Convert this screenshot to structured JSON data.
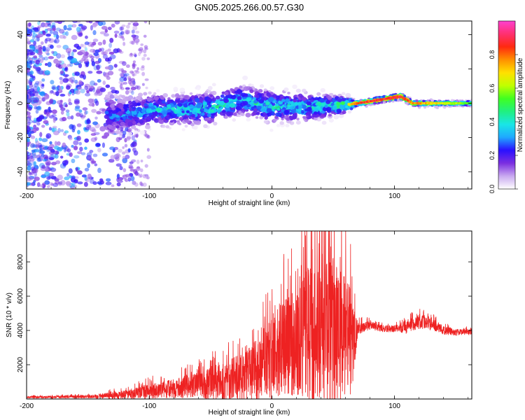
{
  "title": "GN05.2025.266.00.57.G30",
  "chart_data": [
    {
      "type": "heatmap",
      "xlabel": "Height of straight line (km)",
      "ylabel": "Frequency (Hz)",
      "xlim": [
        -200,
        163
      ],
      "ylim": [
        -50,
        48
      ],
      "x_ticks": [
        -200,
        -100,
        0,
        100
      ],
      "y_ticks": [
        -40,
        -20,
        0,
        20,
        40
      ],
      "colorbar": {
        "label": "Normalized spectral amplitude",
        "range": [
          0.0,
          1.0
        ],
        "ticks": [
          "0.0",
          "0.2",
          "0.4",
          "0.6",
          "0.8"
        ],
        "colormap": [
          "#ffffff",
          "#c9a9f0",
          "#7b2fe0",
          "#2a10ff",
          "#1fa8ff",
          "#19e6e6",
          "#20f080",
          "#40ff20",
          "#c0ff00",
          "#ffe000",
          "#ff9000",
          "#ff2a10",
          "#ff3070",
          "#ff40d0"
        ]
      },
      "description_trend": [
        {
          "x": -200,
          "f_center": 0,
          "spread": 48,
          "amp": 0.15
        },
        {
          "x": -130,
          "f_center": -8,
          "spread": 10,
          "amp": 0.3
        },
        {
          "x": -100,
          "f_center": -4,
          "spread": 8,
          "amp": 0.4
        },
        {
          "x": -50,
          "f_center": -3,
          "spread": 8,
          "amp": 0.45
        },
        {
          "x": -25,
          "f_center": 2,
          "spread": 7,
          "amp": 0.45
        },
        {
          "x": 0,
          "f_center": -2,
          "spread": 8,
          "amp": 0.45
        },
        {
          "x": 30,
          "f_center": -2,
          "spread": 7,
          "amp": 0.45
        },
        {
          "x": 60,
          "f_center": -1,
          "spread": 4,
          "amp": 0.6
        },
        {
          "x": 70,
          "f_center": 0,
          "spread": 1.5,
          "amp": 0.9
        },
        {
          "x": 105,
          "f_center": 4,
          "spread": 2,
          "amp": 0.95
        },
        {
          "x": 115,
          "f_center": 0,
          "spread": 1.5,
          "amp": 0.85
        },
        {
          "x": 163,
          "f_center": 0,
          "spread": 1.5,
          "amp": 0.55
        }
      ]
    },
    {
      "type": "line",
      "xlabel": "Height of straight line (km)",
      "ylabel": "SNR (10 * v/v)",
      "xlim": [
        -200,
        163
      ],
      "ylim": [
        0,
        9800
      ],
      "x_ticks": [
        -200,
        -100,
        0,
        100
      ],
      "y_ticks": [
        2000,
        4000,
        6000,
        8000
      ],
      "color": "#ee2222",
      "series": [
        {
          "name": "SNR",
          "x": [
            -200,
            -150,
            -120,
            -100,
            -80,
            -60,
            -40,
            -20,
            -10,
            0,
            10,
            20,
            30,
            40,
            50,
            60,
            65,
            70,
            80,
            90,
            100,
            110,
            120,
            130,
            140,
            150,
            163
          ],
          "mean": [
            100,
            130,
            250,
            450,
            600,
            800,
            1000,
            1400,
            1800,
            2400,
            3000,
            3200,
            3600,
            4200,
            3800,
            3400,
            3200,
            4100,
            4300,
            4100,
            4100,
            4200,
            4500,
            4400,
            4000,
            3900,
            3900
          ],
          "amp": [
            60,
            90,
            250,
            450,
            550,
            750,
            1100,
            1500,
            1900,
            2400,
            2800,
            3000,
            4200,
            4800,
            4500,
            3800,
            3000,
            350,
            250,
            200,
            200,
            400,
            450,
            400,
            250,
            200,
            150
          ]
        }
      ]
    }
  ]
}
